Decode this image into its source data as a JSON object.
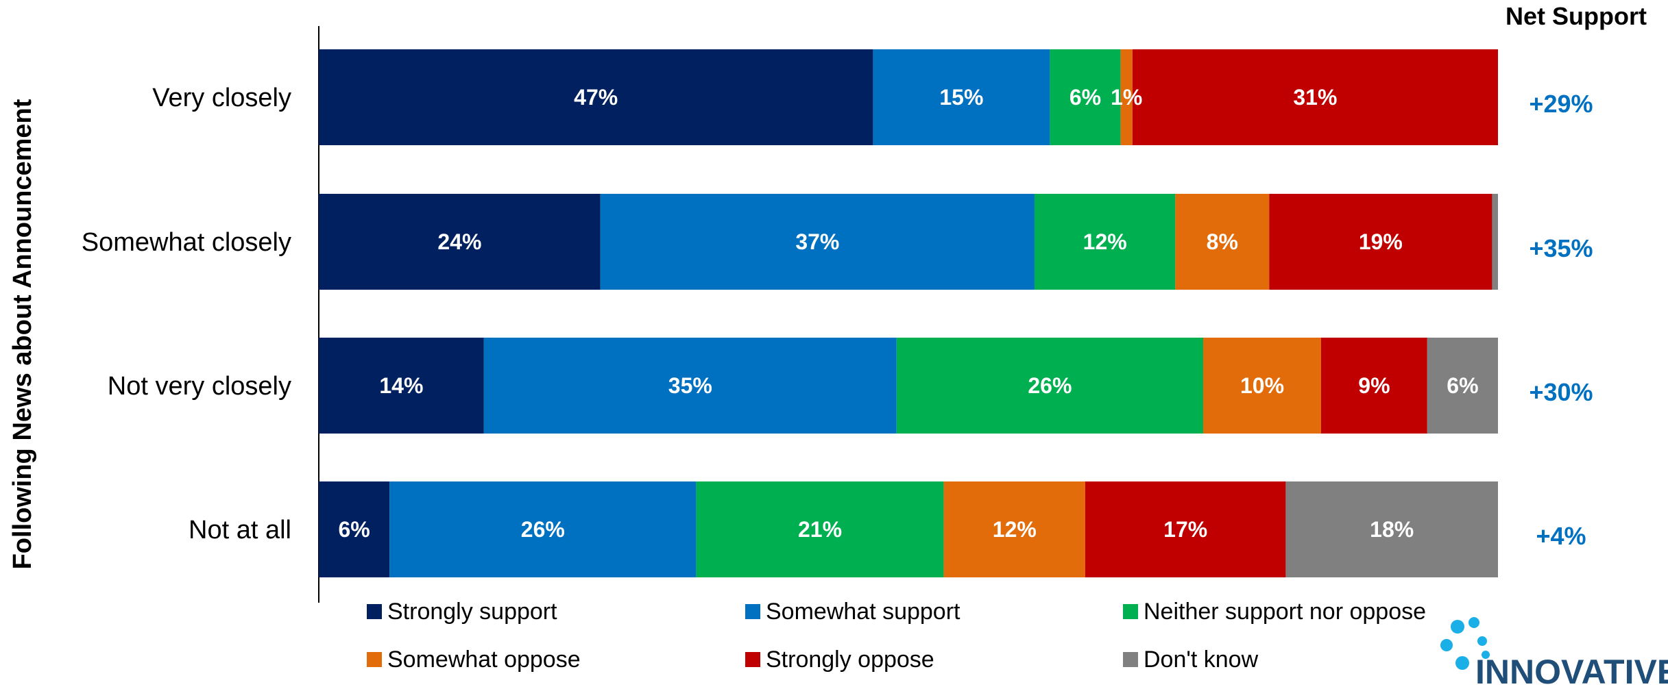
{
  "chart_data": {
    "type": "bar",
    "orientation": "horizontal",
    "stacked": true,
    "ylabel": "Following News about Announcement",
    "net_header": "Net Support",
    "categories": [
      "Very closely",
      "Somewhat closely",
      "Not very closely",
      "Not at all"
    ],
    "series": [
      {
        "name": "Strongly support",
        "color": "#002060",
        "values": [
          47,
          24,
          14,
          6
        ],
        "labels": [
          "47%",
          "24%",
          "14%",
          "6%"
        ]
      },
      {
        "name": "Somewhat support",
        "color": "#0070C0",
        "values": [
          15,
          37,
          35,
          26
        ],
        "labels": [
          "15%",
          "37%",
          "35%",
          "26%"
        ]
      },
      {
        "name": "Neither support nor oppose",
        "color": "#00B050",
        "values": [
          6,
          12,
          26,
          21
        ],
        "labels": [
          "6%",
          "12%",
          "26%",
          "21%"
        ]
      },
      {
        "name": "Somewhat oppose",
        "color": "#E36C0A",
        "values": [
          1,
          8,
          10,
          12
        ],
        "labels": [
          "1%",
          "8%",
          "10%",
          "12%"
        ]
      },
      {
        "name": "Strongly oppose",
        "color": "#C00000",
        "values": [
          31,
          19,
          9,
          17
        ],
        "labels": [
          "31%",
          "19%",
          "9%",
          "17%"
        ]
      },
      {
        "name": "Don't know",
        "color": "#808080",
        "values": [
          0,
          0.5,
          6,
          18
        ],
        "labels": [
          "",
          "",
          "6%",
          "18%"
        ]
      }
    ],
    "net_support": [
      "+29%",
      "+35%",
      "+30%",
      "+4%"
    ],
    "net_color": "#0070C0",
    "legend_position": "bottom",
    "grid": false
  },
  "logo": {
    "text": "INNOVATIVE",
    "color": "#1F4E79",
    "dot_color": "#1AAFE6"
  }
}
